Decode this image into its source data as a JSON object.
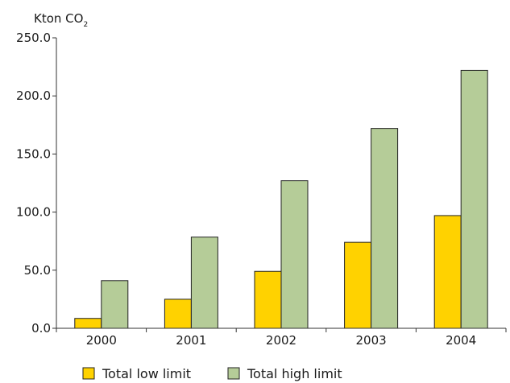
{
  "chart_data": {
    "type": "bar",
    "ylabel_main": "Kton CO",
    "ylabel_sub": "2",
    "categories": [
      "2000",
      "2001",
      "2002",
      "2003",
      "2004"
    ],
    "series": [
      {
        "name": "Total low limit",
        "color": "#FFD200",
        "values": [
          8.5,
          25,
          49,
          74,
          97
        ]
      },
      {
        "name": "Total high limit",
        "color": "#B5CC98",
        "values": [
          41,
          78.5,
          127,
          172,
          222
        ]
      }
    ],
    "ylim": [
      0,
      250
    ],
    "yticks": [
      "0.0",
      "50.0",
      "100.0",
      "150.0",
      "200.0",
      "250.0"
    ],
    "grid": false,
    "legend_position": "bottom"
  }
}
